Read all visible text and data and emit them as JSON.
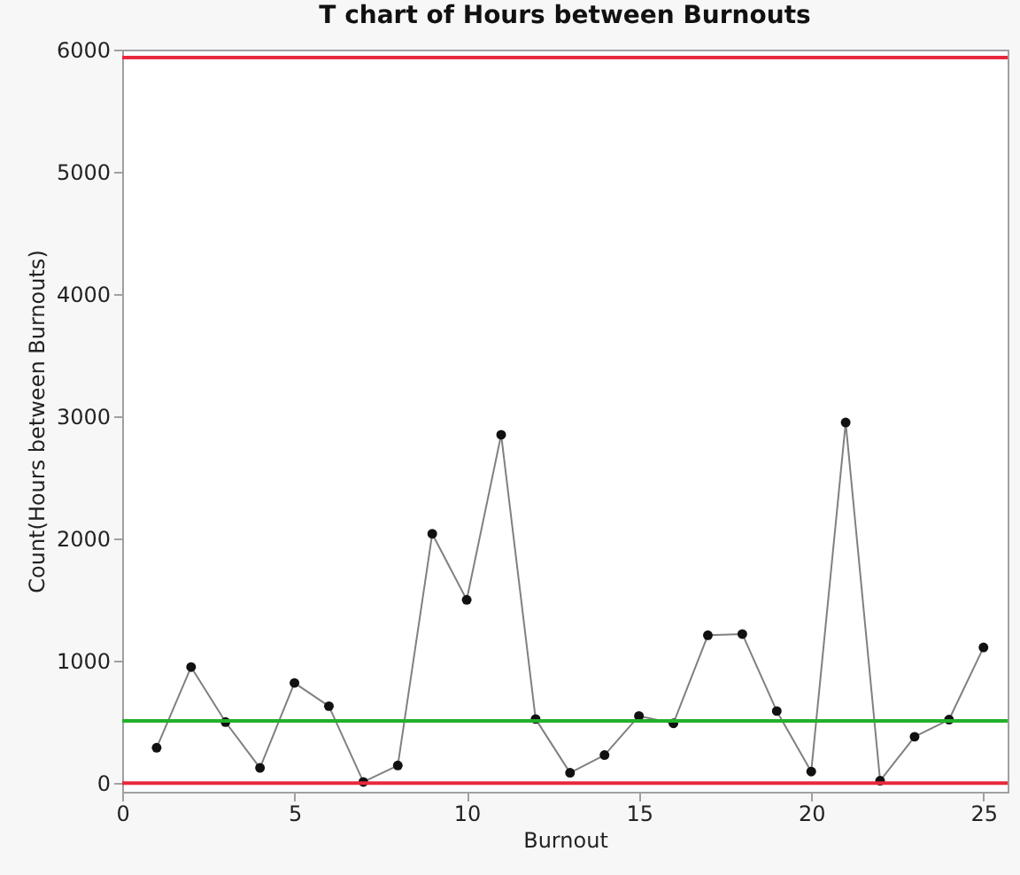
{
  "chart_data": {
    "type": "line",
    "title": "T chart of Hours between Burnouts",
    "xlabel": "Burnout",
    "ylabel": "Count(Hours between Burnouts)",
    "x": [
      1,
      2,
      3,
      4,
      5,
      6,
      7,
      8,
      9,
      10,
      11,
      12,
      13,
      14,
      15,
      16,
      17,
      18,
      19,
      20,
      21,
      22,
      23,
      24,
      25
    ],
    "series": [
      {
        "color": "#808080",
        "values": [
          290,
          950,
          500,
          125,
          820,
          630,
          10,
          145,
          2040,
          1500,
          2850,
          525,
          85,
          230,
          550,
          490,
          1210,
          1220,
          590,
          95,
          2950,
          20,
          380,
          520,
          1110
        ]
      }
    ],
    "xlim": [
      0,
      25.7
    ],
    "xticks": [
      0,
      5,
      10,
      15,
      20,
      25
    ],
    "ylim": [
      -70,
      6000
    ],
    "yticks": [
      0,
      1000,
      2000,
      3000,
      4000,
      5000,
      6000
    ],
    "ref_lines": [
      {
        "axis": "y",
        "value": 5935,
        "color": "#e8283c"
      },
      {
        "axis": "y",
        "value": 510,
        "color": "#22b02a"
      },
      {
        "axis": "y",
        "value": 0,
        "color": "#e8283c"
      }
    ],
    "marker": "circle",
    "grid": false
  }
}
